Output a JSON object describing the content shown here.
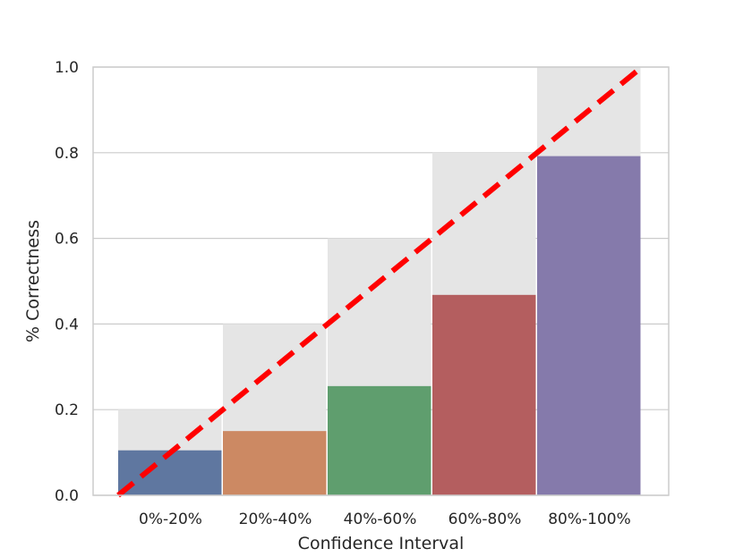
{
  "chart_data": {
    "type": "bar",
    "title": "",
    "xlabel": "Confidence Interval",
    "ylabel": "% Correctness",
    "categories": [
      "0%-20%",
      "20%-40%",
      "40%-60%",
      "60%-80%",
      "80%-100%"
    ],
    "values": [
      0.105,
      0.15,
      0.255,
      0.468,
      0.792
    ],
    "expected": [
      0.2,
      0.4,
      0.6,
      0.8,
      1.0
    ],
    "ylim": [
      0,
      1.0
    ],
    "yticks": [
      "0.0",
      "0.2",
      "0.4",
      "0.6",
      "0.8",
      "1.0"
    ],
    "grid": "horizontal",
    "bar_colors": [
      "#5f77a0",
      "#cc8963",
      "#5f9e6e",
      "#b45e5f",
      "#857aab"
    ],
    "expected_color": "#e5e5e5",
    "diagonal_color": "#ff0000"
  }
}
